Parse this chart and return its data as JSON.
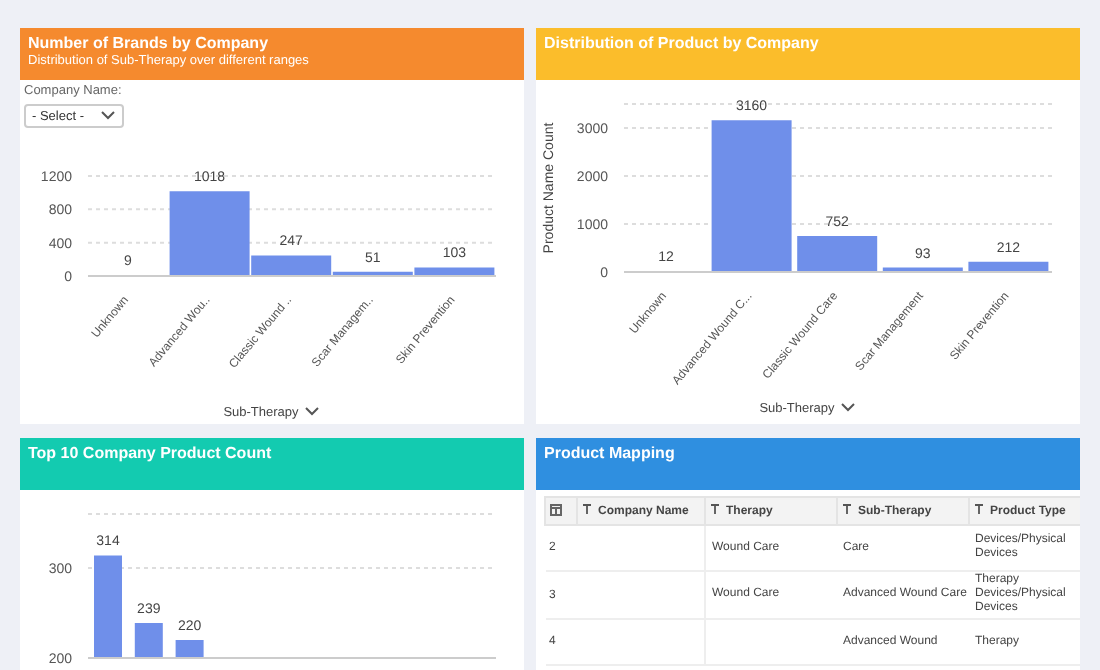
{
  "chart_data": [
    {
      "type": "bar",
      "title": "Number of Brands by Company",
      "subtitle": "Distribution of Sub-Therapy over different ranges",
      "annotations": [
        "Company Name:",
        "- Select -"
      ],
      "xlabel": "Sub-Therapy",
      "categories": [
        "Unknown",
        "Advanced Wou..",
        "Classic Wound ..",
        "Scar Managem..",
        "Skin Prevention"
      ],
      "values": [
        9,
        1018,
        247,
        51,
        103
      ],
      "color": "#6f8fea",
      "ylim": [
        0,
        1200
      ],
      "yticks": [
        0,
        400,
        800,
        1200
      ],
      "grid": "y",
      "data_labels": true
    },
    {
      "type": "bar",
      "title": "Distribution of Product by Company",
      "xlabel": "Sub-Therapy",
      "ylabel": "Product Name Count",
      "categories": [
        "Unknown",
        "Advanced Wound C...",
        "Classic Wound Care",
        "Scar Management",
        "Skin Prevention"
      ],
      "values": [
        12,
        3160,
        752,
        93,
        212
      ],
      "color": "#6f8fea",
      "ylim": [
        0,
        3500
      ],
      "yticks": [
        0,
        1000,
        2000,
        3000
      ],
      "grid": "y",
      "data_labels": true
    },
    {
      "type": "bar",
      "title": "Top 10 Company Product Count",
      "categories": [
        null,
        null,
        null,
        null,
        null,
        null,
        null,
        null,
        null,
        null
      ],
      "values": [
        314,
        239,
        220,
        null,
        null,
        null,
        null,
        null,
        null,
        null
      ],
      "color": "#6f8fea",
      "ylim": [
        200,
        360
      ],
      "yticks": [
        200,
        300
      ],
      "grid": "y",
      "data_labels": true
    },
    {
      "type": "other",
      "title": "Product Mapping",
      "categories": [
        "Company Name",
        "Therapy",
        "Sub-Therapy",
        "Product Type"
      ],
      "y_categories": [
        "2",
        "3",
        "4"
      ],
      "cell_labels": [
        [
          null,
          "Wound Care",
          "Care",
          "Devices/Physical Devices"
        ],
        [
          null,
          "Wound Care",
          "Advanced Wound Care",
          "Therapy Devices/Physical Devices"
        ],
        [
          null,
          null,
          "Advanced Wound",
          "Therapy"
        ]
      ]
    }
  ]
}
